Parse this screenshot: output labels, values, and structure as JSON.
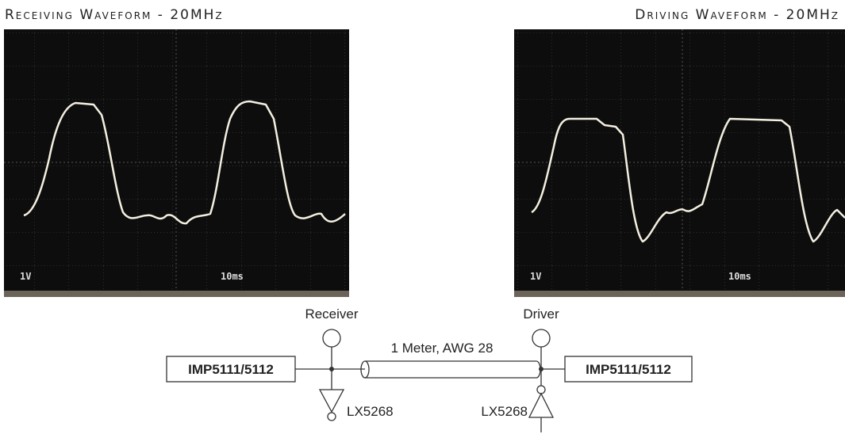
{
  "header": {
    "left_title": "Receiving Waveform - 20MHz",
    "right_title": "Driving Waveform - 20MHz"
  },
  "scopes": [
    {
      "volts_label": "1V",
      "time_label": "10ms"
    },
    {
      "volts_label": "1V",
      "time_label": "10ms"
    }
  ],
  "diagram": {
    "receiver_label": "Receiver",
    "driver_label": "Driver",
    "cable_label": "1 Meter, AWG 28",
    "left_box": "IMP5111/5112",
    "right_box": "IMP5111/5112",
    "left_buffer": "LX5268",
    "right_buffer": "LX5268"
  }
}
